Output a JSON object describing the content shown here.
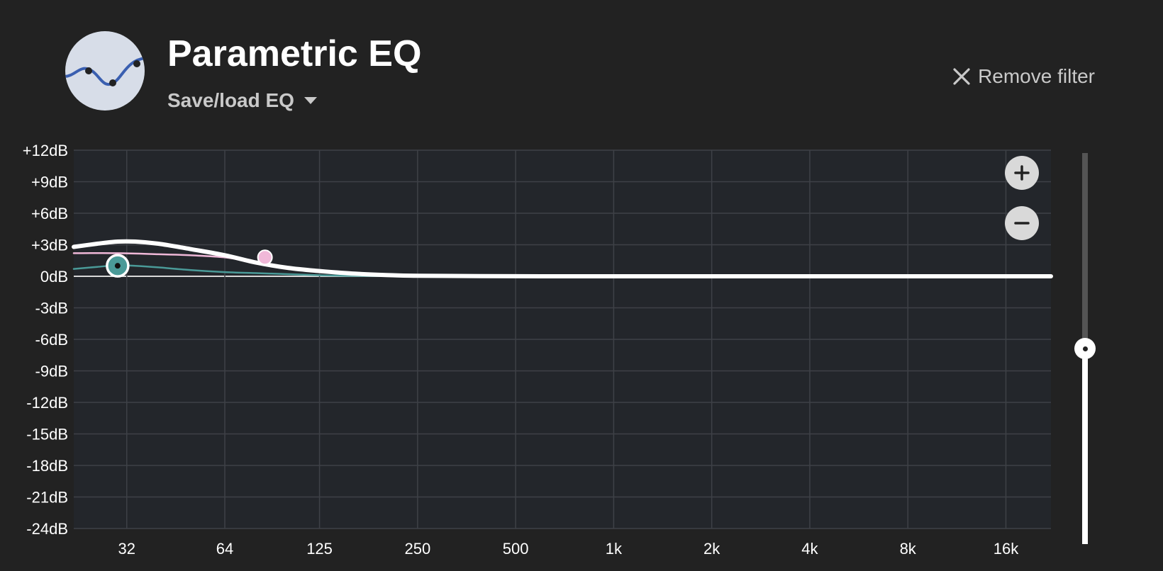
{
  "header": {
    "title": "Parametric EQ",
    "save_load_label": "Save/load EQ",
    "remove_filter_label": "Remove filter",
    "logo_icon": "eq-curve-icon",
    "logo_colors": {
      "background": "#d7dde8",
      "curve": "#3a5fb0",
      "dots": "#222222"
    }
  },
  "chart_data": {
    "type": "line",
    "title": "",
    "xlabel": "",
    "ylabel": "",
    "x_scale": "log",
    "xlim": [
      22,
      22000
    ],
    "ylim": [
      -24,
      12
    ],
    "grid": true,
    "x_tick_values": [
      32,
      64,
      125,
      250,
      500,
      1000,
      2000,
      4000,
      8000,
      16000
    ],
    "x_tick_labels": [
      "32",
      "64",
      "125",
      "250",
      "500",
      "1k",
      "2k",
      "4k",
      "8k",
      "16k"
    ],
    "y_tick_values": [
      12,
      9,
      6,
      3,
      0,
      -3,
      -6,
      -9,
      -12,
      -15,
      -18,
      -21,
      -24
    ],
    "y_tick_labels": [
      "+12dB",
      "+9dB",
      "+6dB",
      "+3dB",
      "0dB",
      "-3dB",
      "-6dB",
      "-9dB",
      "-12dB",
      "-15dB",
      "-18dB",
      "-21dB",
      "-24dB"
    ],
    "series": [
      {
        "color": "#ffffff",
        "x": [
          22,
          26,
          30,
          34,
          40,
          50,
          64,
          80,
          100,
          125,
          160,
          200,
          250,
          500,
          1000,
          2000,
          4000,
          8000,
          16000,
          22000
        ],
        "y": [
          2.8,
          3.1,
          3.3,
          3.3,
          3.1,
          2.6,
          2.0,
          1.3,
          0.8,
          0.5,
          0.25,
          0.12,
          0.05,
          0.01,
          0,
          0,
          0,
          0,
          0,
          0
        ]
      },
      {
        "color": "#f0b8d8",
        "x": [
          22,
          30,
          40,
          50,
          64,
          80,
          100,
          125,
          160,
          200,
          250,
          500,
          1000,
          22000
        ],
        "y": [
          2.2,
          2.2,
          2.1,
          2.0,
          1.8,
          1.3,
          0.8,
          0.45,
          0.2,
          0.08,
          0.03,
          0.01,
          0,
          0
        ]
      },
      {
        "color": "#4a9a98",
        "x": [
          22,
          26,
          30,
          34,
          40,
          50,
          64,
          80,
          100,
          125,
          160,
          250,
          500,
          22000
        ],
        "y": [
          0.7,
          0.9,
          1.05,
          1.0,
          0.85,
          0.6,
          0.4,
          0.3,
          0.2,
          0.1,
          0.04,
          0.01,
          0,
          0
        ]
      }
    ],
    "filter_handles": [
      {
        "name": "filter-handle-1",
        "x": 30,
        "y": 1.0,
        "color": "#4a9a98",
        "selected": true
      },
      {
        "name": "filter-handle-2",
        "x": 85,
        "y": 1.8,
        "color": "#f0b8d8",
        "selected": false
      }
    ],
    "zoom_in_icon": "plus-icon",
    "zoom_out_icon": "minus-icon"
  },
  "gain_slider": {
    "level": 0.5,
    "min_db": -24,
    "max_db": 12
  },
  "colors": {
    "page_background": "#222222",
    "plot_background": "#23262b",
    "grid": "#3e4147",
    "text_muted": "#c9c9c9"
  }
}
